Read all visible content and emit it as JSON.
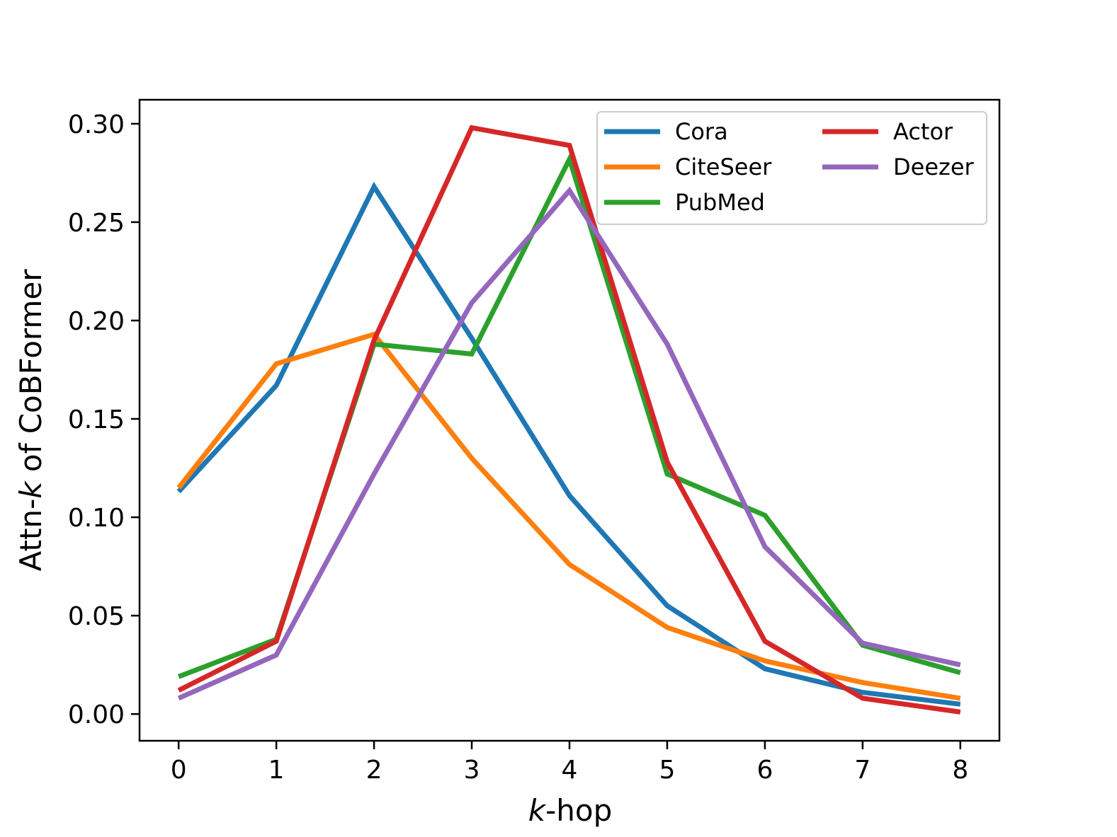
{
  "chart_data": {
    "type": "line",
    "x": [
      0,
      1,
      2,
      3,
      4,
      5,
      6,
      7,
      8
    ],
    "x_ticks": [
      "0",
      "1",
      "2",
      "3",
      "4",
      "5",
      "6",
      "7",
      "8"
    ],
    "y_ticks": [
      "0.00",
      "0.05",
      "0.10",
      "0.15",
      "0.20",
      "0.25",
      "0.30"
    ],
    "xlim": [
      -0.4,
      8.4
    ],
    "ylim": [
      -0.0136,
      0.3122
    ],
    "xlabel": {
      "italic": "k",
      "rest": "-hop"
    },
    "ylabel": {
      "pre": "Attn-",
      "italic": "k",
      "post": " of CoBFormer"
    },
    "grid": false,
    "legend_position": "top-right",
    "legend_columns": 2,
    "series": [
      {
        "name": "Cora",
        "color": "#1f77b4",
        "values": [
          0.113,
          0.167,
          0.268,
          0.191,
          0.111,
          0.055,
          0.023,
          0.011,
          0.005
        ]
      },
      {
        "name": "CiteSeer",
        "color": "#ff7f0e",
        "values": [
          0.115,
          0.178,
          0.193,
          0.13,
          0.076,
          0.044,
          0.027,
          0.016,
          0.008
        ]
      },
      {
        "name": "PubMed",
        "color": "#2ca02c",
        "values": [
          0.019,
          0.038,
          0.188,
          0.183,
          0.282,
          0.122,
          0.101,
          0.035,
          0.021
        ]
      },
      {
        "name": "Actor",
        "color": "#d62728",
        "values": [
          0.012,
          0.037,
          0.19,
          0.298,
          0.289,
          0.128,
          0.037,
          0.008,
          0.001
        ]
      },
      {
        "name": "Deezer",
        "color": "#9467bd",
        "values": [
          0.008,
          0.03,
          0.122,
          0.209,
          0.266,
          0.188,
          0.085,
          0.036,
          0.025
        ]
      }
    ]
  }
}
